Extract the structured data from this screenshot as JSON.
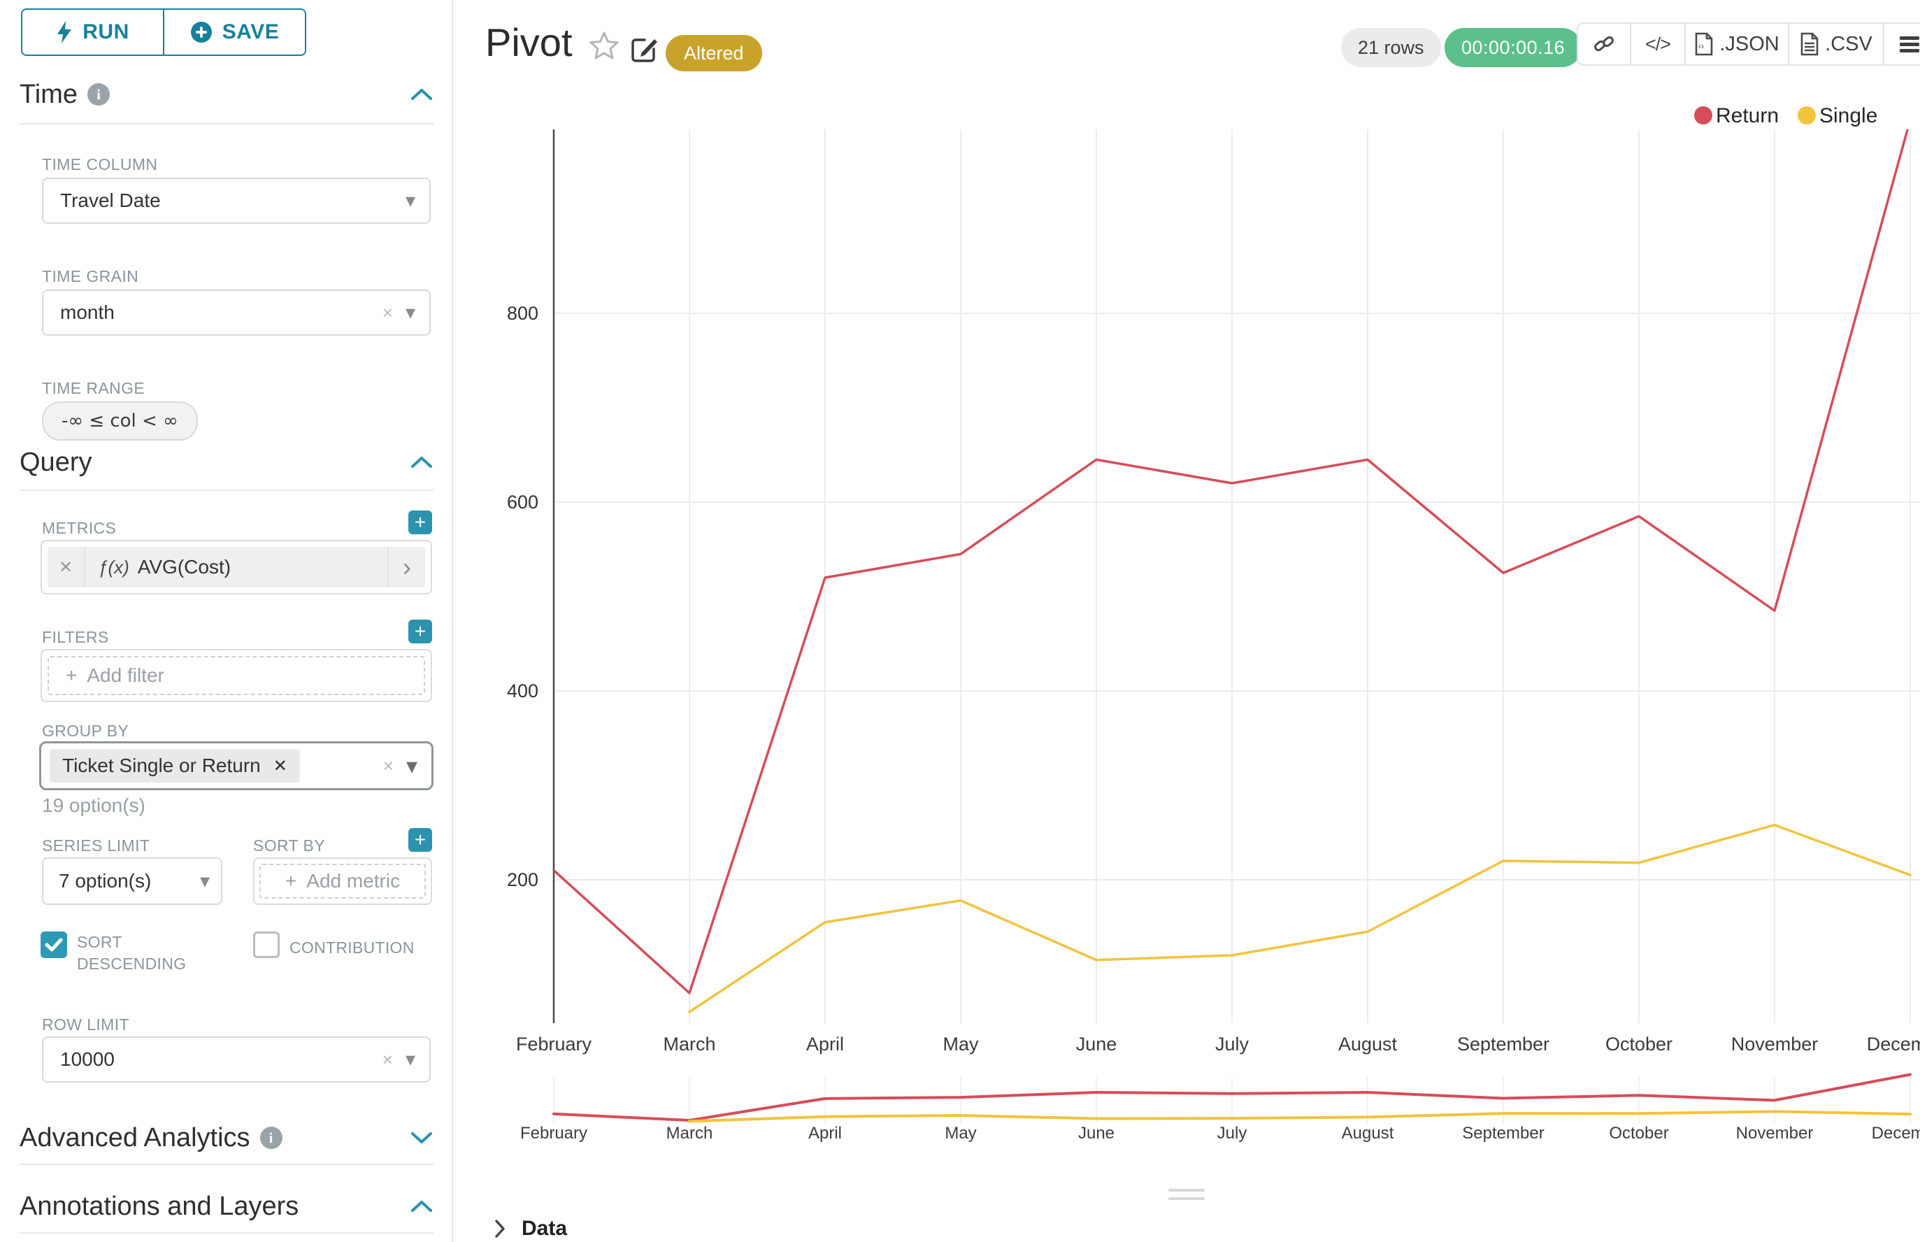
{
  "sidebar": {
    "run_label": "RUN",
    "save_label": "SAVE",
    "time": {
      "title": "Time",
      "time_column_label": "TIME COLUMN",
      "time_column_value": "Travel Date",
      "time_grain_label": "TIME GRAIN",
      "time_grain_value": "month",
      "time_range_label": "TIME RANGE",
      "time_range_value": "-∞ ≤ col < ∞"
    },
    "query": {
      "title": "Query",
      "metrics_label": "METRICS",
      "metric_fx": "ƒ(x)",
      "metric_name": "AVG(Cost)",
      "filters_label": "FILTERS",
      "add_filter_placeholder": "Add filter",
      "group_by_label": "GROUP BY",
      "group_by_value": "Ticket Single or Return",
      "group_by_hint": "19 option(s)",
      "series_limit_label": "SERIES LIMIT",
      "series_limit_value": "7 option(s)",
      "sort_by_label": "SORT BY",
      "add_metric_placeholder": "Add metric",
      "sort_descending_label": "SORT DESCENDING",
      "contribution_label": "CONTRIBUTION",
      "row_limit_label": "ROW LIMIT",
      "row_limit_value": "10000"
    },
    "advanced_analytics_label": "Advanced Analytics",
    "annotations_label": "Annotations and Layers"
  },
  "header": {
    "title": "Pivot",
    "altered_badge": "Altered"
  },
  "toolbar": {
    "rows_count": "21 rows",
    "query_time": "00:00:00.16",
    "json_label": ".JSON",
    "csv_label": ".CSV"
  },
  "footer": {
    "data_label": "Data"
  },
  "icons": {
    "run": "bolt",
    "save": "plus-circle",
    "info": "i",
    "collapse": "chevron-up",
    "expand": "chevron-down",
    "plus": "+",
    "clear": "×",
    "caret": "▾",
    "remove_tag": "✕",
    "metric_arrow": "›",
    "star": "☆",
    "edit": "pencil-square",
    "link": "chain",
    "code": "</>",
    "menu": "☰",
    "data_chevron": "›"
  },
  "colors": {
    "accent": "#17809c",
    "accent_light": "#2b93ad",
    "altered_badge": "#c9a22a",
    "timer_green": "#5bc08c",
    "return_red": "#d54d58",
    "single_yellow": "#f2c33c",
    "grid": "#ececec",
    "axis": "#4a4a4a"
  },
  "chart_data": {
    "type": "line",
    "title": "Pivot",
    "xlabel": "",
    "ylabel": "",
    "x": [
      "February",
      "March",
      "April",
      "May",
      "June",
      "July",
      "August",
      "September",
      "October",
      "November",
      "December"
    ],
    "series": [
      {
        "name": "Return",
        "color": "#d54d58",
        "values": [
          210,
          80,
          520,
          545,
          645,
          620,
          645,
          525,
          585,
          485,
          1005
        ]
      },
      {
        "name": "Single",
        "color": "#f2c33c",
        "values": [
          null,
          60,
          155,
          178,
          115,
          120,
          145,
          220,
          218,
          258,
          205
        ]
      }
    ],
    "yticks": [
      200,
      400,
      600,
      800
    ],
    "ylim": [
      45,
      995
    ],
    "grid": true,
    "legend_position": "top-right",
    "has_mini_preview": true
  }
}
